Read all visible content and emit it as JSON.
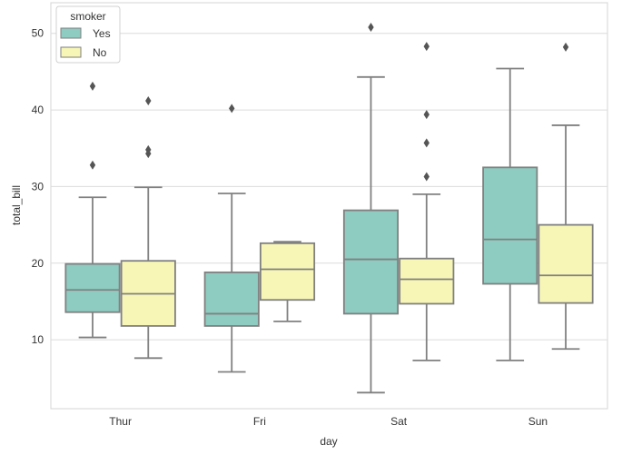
{
  "chart_data": {
    "type": "box",
    "xlabel": "day",
    "ylabel": "total_bill",
    "categories": [
      "Thur",
      "Fri",
      "Sat",
      "Sun"
    ],
    "ylim": [
      1,
      54
    ],
    "yticks": [
      10,
      20,
      30,
      40,
      50
    ],
    "grid": "horizontal",
    "legend": {
      "title": "smoker",
      "placement": "top-left",
      "entries": [
        "Yes",
        "No"
      ]
    },
    "series": [
      {
        "name": "Yes",
        "color": "#8ecbc0",
        "boxes": [
          {
            "category": "Thur",
            "whisker_low": 10.3,
            "q1": 13.6,
            "median": 16.5,
            "q3": 19.9,
            "whisker_high": 28.6,
            "outliers": [
              32.8,
              43.1
            ]
          },
          {
            "category": "Fri",
            "whisker_low": 5.8,
            "q1": 11.8,
            "median": 13.4,
            "q3": 18.8,
            "whisker_high": 29.1,
            "outliers": [
              40.2
            ]
          },
          {
            "category": "Sat",
            "whisker_low": 3.1,
            "q1": 13.4,
            "median": 20.5,
            "q3": 26.9,
            "whisker_high": 44.3,
            "outliers": [
              50.8
            ]
          },
          {
            "category": "Sun",
            "whisker_low": 7.3,
            "q1": 17.3,
            "median": 23.1,
            "q3": 32.5,
            "whisker_high": 45.4,
            "outliers": []
          }
        ]
      },
      {
        "name": "No",
        "color": "#f7f6b6",
        "boxes": [
          {
            "category": "Thur",
            "whisker_low": 7.6,
            "q1": 11.8,
            "median": 16.0,
            "q3": 20.3,
            "whisker_high": 29.9,
            "outliers": [
              34.3,
              34.8,
              41.2
            ]
          },
          {
            "category": "Fri",
            "whisker_low": 12.4,
            "q1": 15.2,
            "median": 19.2,
            "q3": 22.6,
            "whisker_high": 22.8,
            "outliers": []
          },
          {
            "category": "Sat",
            "whisker_low": 7.3,
            "q1": 14.7,
            "median": 17.9,
            "q3": 20.6,
            "whisker_high": 29.0,
            "outliers": [
              31.3,
              35.7,
              39.4,
              48.3
            ]
          },
          {
            "category": "Sun",
            "whisker_low": 8.8,
            "q1": 14.8,
            "median": 18.4,
            "q3": 25.0,
            "whisker_high": 38.0,
            "outliers": [
              48.2
            ]
          }
        ]
      }
    ]
  }
}
